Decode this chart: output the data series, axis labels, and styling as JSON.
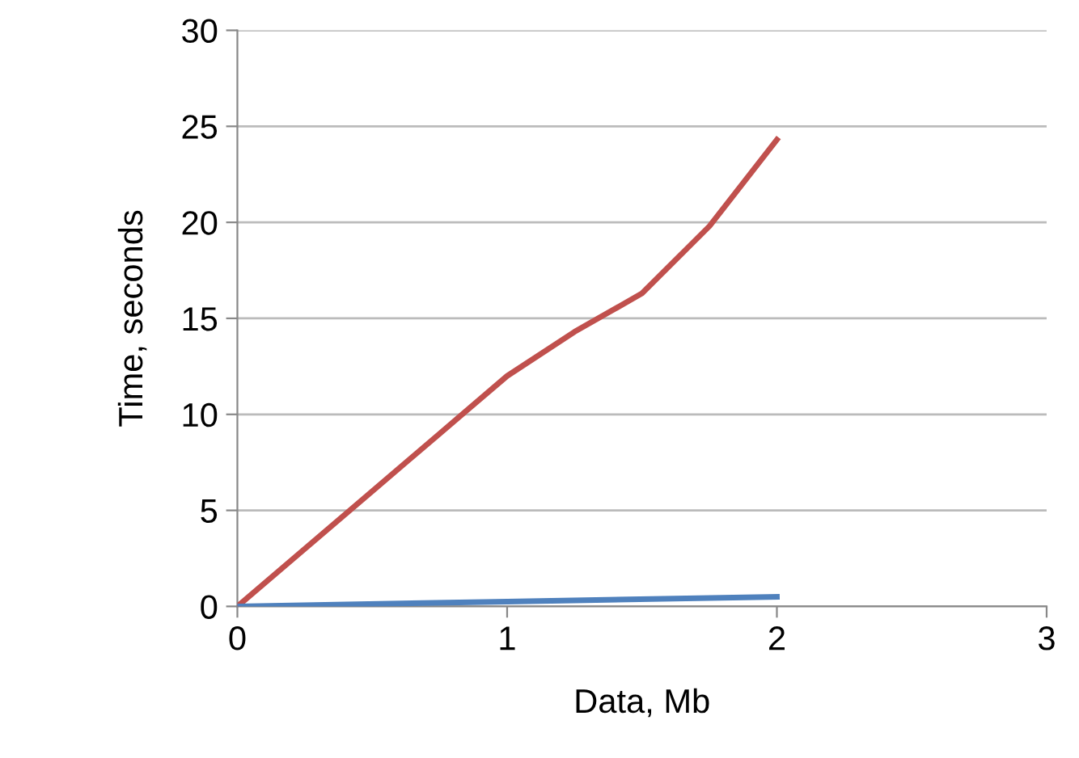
{
  "chart_data": {
    "type": "line",
    "xlabel": "Data, Mb",
    "ylabel": "Time, seconds",
    "series": [
      {
        "color": "#c0504d",
        "x": [
          0,
          0.25,
          0.5,
          0.75,
          1,
          1.25,
          1.5,
          1.75,
          2
        ],
        "values": [
          0,
          3,
          6,
          9,
          12,
          14.3,
          16.3,
          19.8,
          24.3
        ]
      },
      {
        "color": "#4f81bd",
        "x": [
          0,
          1,
          2
        ],
        "values": [
          0,
          0.25,
          0.5
        ]
      }
    ],
    "xlim": [
      0,
      3
    ],
    "xticks": [
      0,
      1,
      2,
      3
    ],
    "ylim": [
      0,
      30
    ],
    "yticks": [
      0,
      5,
      10,
      15,
      20,
      25,
      30
    ],
    "grid": "y",
    "marker": "none",
    "line_style": "solid"
  }
}
